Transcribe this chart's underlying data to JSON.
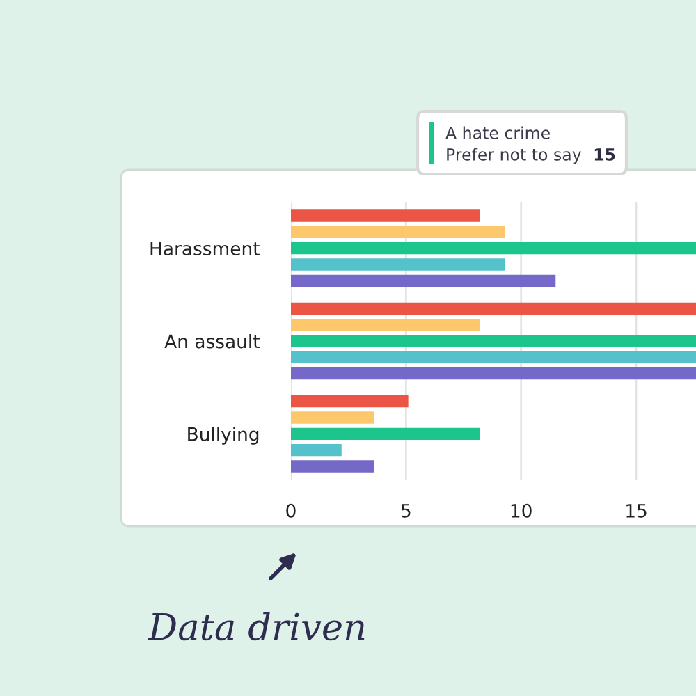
{
  "chart_data": {
    "type": "bar",
    "orientation": "horizontal",
    "categories": [
      "Harassment",
      "An assault",
      "Bullying"
    ],
    "series": [
      {
        "color": "#ea5545",
        "values": [
          8.2,
          17.6,
          5.1
        ]
      },
      {
        "color": "#fdc86b",
        "values": [
          9.3,
          8.2,
          3.6
        ]
      },
      {
        "color": "#1bc58b",
        "values": [
          17.6,
          17.6,
          8.2
        ]
      },
      {
        "color": "#55c1ca",
        "values": [
          9.3,
          17.6,
          2.2
        ]
      },
      {
        "color": "#7468c9",
        "values": [
          11.5,
          17.6,
          3.6
        ]
      }
    ],
    "xlim": [
      0,
      17.6
    ],
    "xticks": [
      0,
      5,
      10,
      15
    ],
    "grid": "x",
    "annotations": [
      "A hate crime",
      "Prefer not to say",
      "15",
      "Data driven"
    ]
  }
}
